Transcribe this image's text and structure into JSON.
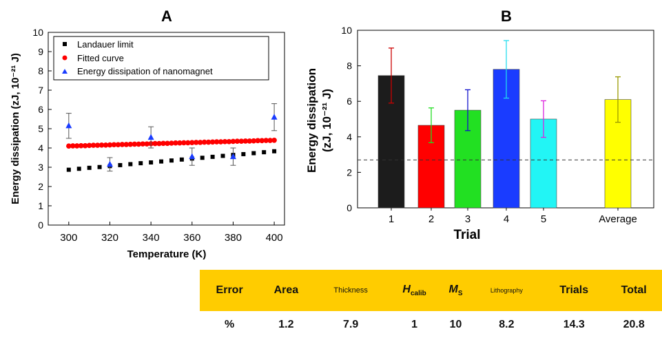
{
  "chart_data": [
    {
      "panel": "A",
      "type": "scatter",
      "xlabel": "Temperature (K)",
      "ylabel": "Energy dissipation (zJ, 10⁻²¹ J)",
      "xlim": [
        290,
        405
      ],
      "ylim": [
        0,
        10
      ],
      "xticks": [
        300,
        320,
        340,
        360,
        380,
        400
      ],
      "yticks": [
        0,
        1,
        2,
        3,
        4,
        5,
        6,
        7,
        8,
        9,
        10
      ],
      "legend_position": "top-left",
      "series": [
        {
          "name": "Landauer limit",
          "marker": "square",
          "color": "#000000",
          "x": [
            300,
            305,
            310,
            315,
            320,
            325,
            330,
            335,
            340,
            345,
            350,
            355,
            360,
            365,
            370,
            375,
            380,
            385,
            390,
            395,
            400
          ],
          "y": [
            2.87,
            2.92,
            2.97,
            3.01,
            3.06,
            3.11,
            3.16,
            3.21,
            3.25,
            3.3,
            3.35,
            3.4,
            3.45,
            3.49,
            3.54,
            3.59,
            3.64,
            3.68,
            3.73,
            3.78,
            3.83
          ]
        },
        {
          "name": "Fitted curve",
          "marker": "circle",
          "color": "#ff0000",
          "x": [
            300,
            302,
            304,
            306,
            308,
            310,
            312,
            314,
            316,
            318,
            320,
            322,
            324,
            326,
            328,
            330,
            332,
            334,
            336,
            338,
            340,
            342,
            344,
            346,
            348,
            350,
            352,
            354,
            356,
            358,
            360,
            362,
            364,
            366,
            368,
            370,
            372,
            374,
            376,
            378,
            380,
            382,
            384,
            386,
            388,
            390,
            392,
            394,
            396,
            398,
            400
          ],
          "y": [
            4.1,
            4.11,
            4.11,
            4.12,
            4.12,
            4.13,
            4.14,
            4.14,
            4.15,
            4.15,
            4.16,
            4.17,
            4.17,
            4.18,
            4.18,
            4.19,
            4.2,
            4.2,
            4.21,
            4.21,
            4.22,
            4.23,
            4.23,
            4.24,
            4.24,
            4.25,
            4.26,
            4.26,
            4.27,
            4.27,
            4.28,
            4.29,
            4.29,
            4.3,
            4.3,
            4.31,
            4.32,
            4.32,
            4.33,
            4.33,
            4.34,
            4.35,
            4.35,
            4.36,
            4.36,
            4.37,
            4.38,
            4.38,
            4.39,
            4.39,
            4.4
          ]
        },
        {
          "name": "Energy dissipation of nanomagnet",
          "marker": "triangle",
          "color": "#0000ff",
          "x": [
            300,
            320,
            340,
            360,
            380,
            400
          ],
          "y": [
            5.15,
            3.15,
            4.55,
            3.55,
            3.55,
            5.6
          ],
          "err": [
            0.65,
            0.35,
            0.55,
            0.45,
            0.45,
            0.7
          ]
        }
      ]
    },
    {
      "panel": "B",
      "type": "bar",
      "xlabel": "Trial",
      "ylabel": "Energy dissipation (zJ, 10⁻²¹ J)",
      "ylim": [
        0,
        10
      ],
      "yticks": [
        0,
        2,
        4,
        6,
        8,
        10
      ],
      "categories": [
        "1",
        "2",
        "3",
        "4",
        "5",
        "Average"
      ],
      "values": [
        7.45,
        4.65,
        5.5,
        7.8,
        5.0,
        6.1
      ],
      "errors": [
        1.55,
        0.98,
        1.15,
        1.62,
        1.03,
        1.28
      ],
      "bar_colors": [
        "#1c1c1c",
        "#ff0000",
        "#22e022",
        "#1a3cff",
        "#22f5f5",
        "#ffff00"
      ],
      "error_colors": [
        "#cc0000",
        "#22dd22",
        "#1010cc",
        "#22ddee",
        "#dd22dd",
        "#999900"
      ],
      "reference_line": 2.7
    }
  ],
  "panels": {
    "a_label": "A",
    "b_label": "B"
  },
  "error_table": {
    "headers": [
      "Error",
      "Area",
      "Thickness",
      "H",
      "M",
      "Lithography",
      "Trials",
      "Total"
    ],
    "header_subscripts": {
      "H": "calib",
      "M": "S"
    },
    "values": [
      "%",
      "1.2",
      "7.9",
      "1",
      "10",
      "8.2",
      "14.3",
      "20.8"
    ],
    "background": "#ffcc00"
  }
}
